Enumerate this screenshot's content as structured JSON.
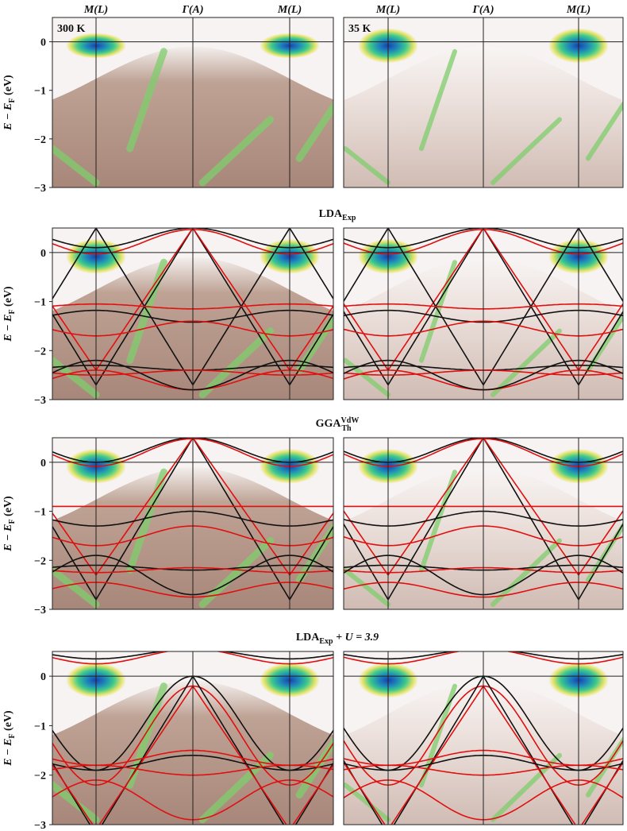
{
  "figure": {
    "columns": [
      "M(L)",
      "Γ(A)",
      "M(L)"
    ],
    "temperatures": [
      "300 K",
      "35 K"
    ],
    "y_axis": {
      "label": {
        "main": "E − E",
        "sub": "F",
        "unit": " (eV)"
      },
      "ylim": [
        -3,
        0.5
      ],
      "yticks": [
        0,
        {
          "value": -1,
          "label": "−1"
        },
        {
          "value": -2,
          "label": "−2"
        },
        {
          "value": -3,
          "label": "−3"
        }
      ]
    },
    "row_titles": [
      {
        "base": "LDA",
        "sub": "Exp"
      },
      {
        "base": "GGA",
        "sup": "VdW",
        "sub": "Th"
      },
      {
        "base": "LDA",
        "sub": "Exp",
        "suffix": " + U = 3.9"
      }
    ]
  }
}
